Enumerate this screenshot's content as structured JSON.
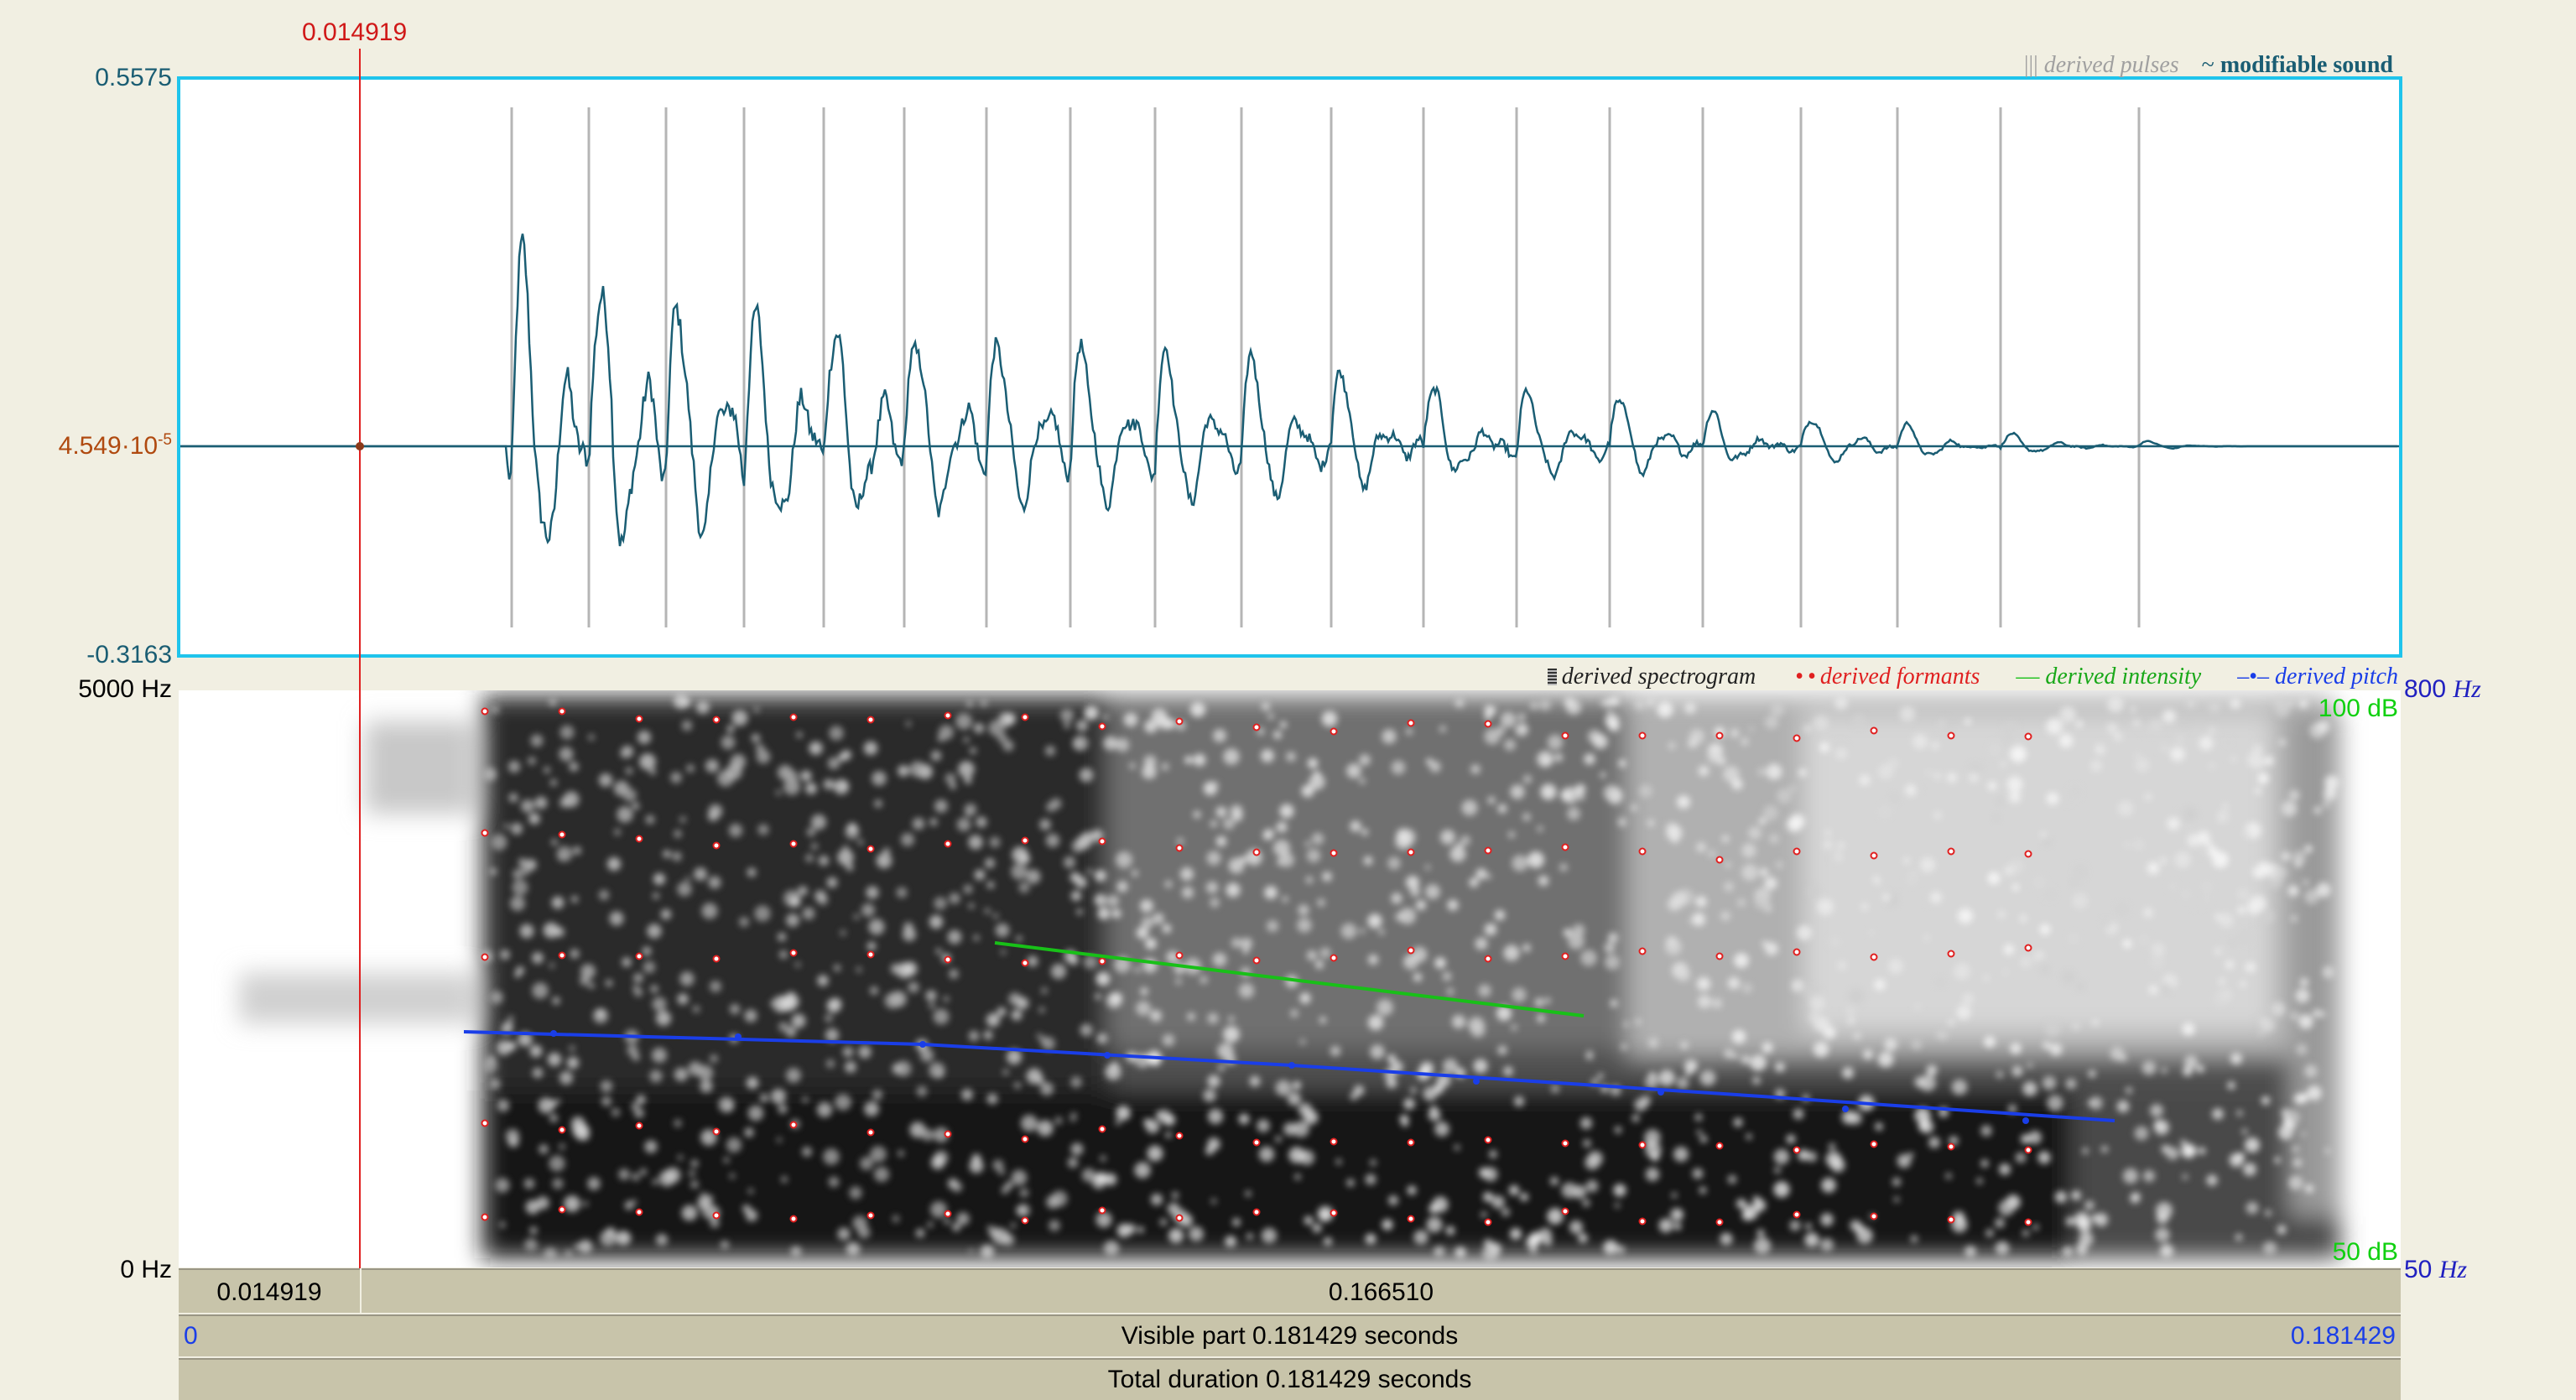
{
  "cursor": {
    "time_label": "0.014919",
    "time": 0.014919
  },
  "waveform": {
    "ymax_label": "0.5575",
    "ymin_label": "-0.3163",
    "zero_mantissa": "4.549·10",
    "zero_exponent": "-5",
    "legend": {
      "pulses_glyph": "|||",
      "pulses_label": "derived pulses",
      "sound_glyph": "~",
      "sound_label": "modifiable sound"
    },
    "colors": {
      "wave": "#1a5d73",
      "pulse": "#b5b5b5",
      "frame": "#1fc4ec"
    }
  },
  "spectrogram": {
    "freq_top_label": "5000 Hz",
    "freq_bottom_label": "0 Hz",
    "pitch_top_label": "800",
    "pitch_bottom_label": "50",
    "pitch_unit": "Hz",
    "intensity_top_label": "100 dB",
    "intensity_bottom_label": "50 dB",
    "legend": {
      "spectrogram_label": "derived spectrogram",
      "formants_label": "derived formants",
      "intensity_glyph": "—",
      "intensity_label": "derived intensity",
      "pitch_glyph": "–•–",
      "pitch_label": "derived pitch"
    },
    "colors": {
      "formant": "#e02020",
      "intensity": "#18c018",
      "pitch": "#1a3ee8",
      "pitch_label": "#2020c0",
      "intensity_label": "#10d010"
    }
  },
  "time_bars": {
    "cursor_left": "0.014919",
    "cursor_right": "0.166510",
    "visible_start": "0",
    "visible_label": "Visible part 0.181429 seconds",
    "visible_end": "0.181429",
    "total_label": "Total duration 0.181429 seconds"
  }
}
